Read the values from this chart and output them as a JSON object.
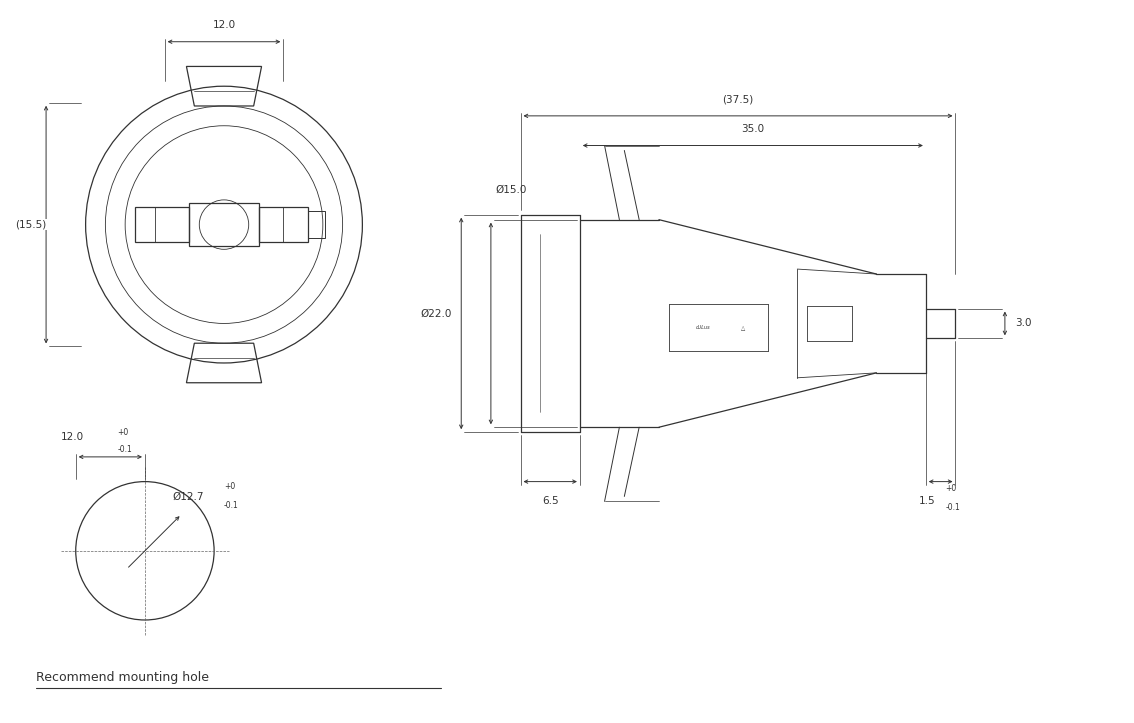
{
  "bg_color": "#ffffff",
  "line_color": "#333333",
  "recommend_text": "Recommend mounting hole",
  "dims": {
    "top_width": "12.0",
    "side_height": "(15.5)",
    "total_length_ref": "(37.5)",
    "total_length": "35.0",
    "flange_dia_large": "Ø22.0",
    "flange_dia_small": "Ø15.0",
    "flange_depth": "6.5",
    "tip_dia": "3.0",
    "hole_dia": "Ø12.7",
    "hole_depth": "12.0"
  }
}
